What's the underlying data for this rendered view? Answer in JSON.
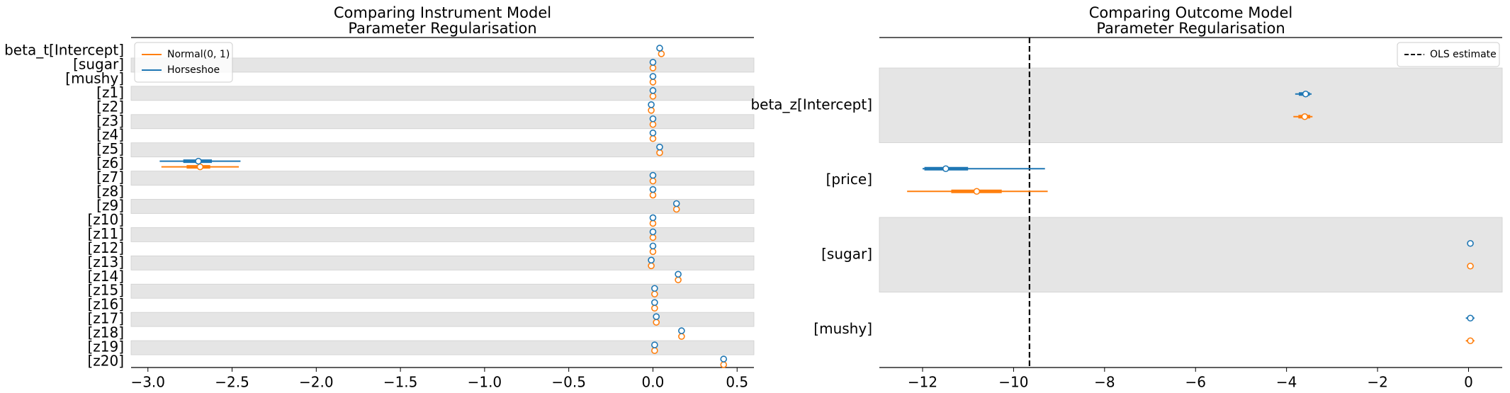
{
  "chart_data": [
    {
      "type": "forest",
      "title": [
        "Comparing Instrument Model",
        "Parameter Regularisation"
      ],
      "categories": [
        "beta_t[Intercept]",
        "[sugar]",
        "[mushy]",
        "[z1]",
        "[z2]",
        "[z3]",
        "[z4]",
        "[z5]",
        "[z6]",
        "[z7]",
        "[z8]",
        "[z9]",
        "[z10]",
        "[z11]",
        "[z12]",
        "[z13]",
        "[z14]",
        "[z15]",
        "[z16]",
        "[z17]",
        "[z18]",
        "[z19]",
        "[z20]"
      ],
      "series": [
        {
          "name": "Normal(0, 1)",
          "color": "#ff7f0e",
          "values": [
            0.05,
            0.0,
            0.0,
            0.0,
            -0.01,
            0.0,
            0.0,
            0.04,
            -2.69,
            0.0,
            0.0,
            0.14,
            0.0,
            0.0,
            0.0,
            -0.01,
            0.15,
            0.01,
            0.01,
            0.02,
            0.17,
            0.01,
            0.42
          ],
          "hdi_low": [
            null,
            null,
            null,
            null,
            null,
            null,
            null,
            null,
            -2.92,
            null,
            null,
            null,
            null,
            null,
            null,
            null,
            null,
            null,
            null,
            null,
            null,
            null,
            null
          ],
          "hdi_high": [
            null,
            null,
            null,
            null,
            null,
            null,
            null,
            null,
            -2.46,
            null,
            null,
            null,
            null,
            null,
            null,
            null,
            null,
            null,
            null,
            null,
            null,
            null,
            null
          ],
          "iqr_low": [
            null,
            null,
            null,
            null,
            null,
            null,
            null,
            null,
            -2.77,
            null,
            null,
            null,
            null,
            null,
            null,
            null,
            null,
            null,
            null,
            null,
            null,
            null,
            null
          ],
          "iqr_high": [
            null,
            null,
            null,
            null,
            null,
            null,
            null,
            null,
            -2.63,
            null,
            null,
            null,
            null,
            null,
            null,
            null,
            null,
            null,
            null,
            null,
            null,
            null,
            null
          ]
        },
        {
          "name": "Horseshoe",
          "color": "#1f77b4",
          "values": [
            0.04,
            0.0,
            0.0,
            0.0,
            -0.01,
            0.0,
            0.0,
            0.04,
            -2.7,
            0.0,
            0.0,
            0.14,
            0.0,
            0.0,
            0.0,
            -0.01,
            0.15,
            0.01,
            0.01,
            0.02,
            0.17,
            0.01,
            0.42
          ],
          "hdi_low": [
            null,
            null,
            null,
            null,
            null,
            null,
            null,
            null,
            -2.93,
            null,
            null,
            null,
            null,
            null,
            null,
            null,
            null,
            null,
            null,
            null,
            null,
            null,
            null
          ],
          "hdi_high": [
            null,
            null,
            null,
            null,
            null,
            null,
            null,
            null,
            -2.45,
            null,
            null,
            null,
            null,
            null,
            null,
            null,
            null,
            null,
            null,
            null,
            null,
            null,
            null
          ],
          "iqr_low": [
            null,
            null,
            null,
            null,
            null,
            null,
            null,
            null,
            -2.79,
            null,
            null,
            null,
            null,
            null,
            null,
            null,
            null,
            null,
            null,
            null,
            null,
            null,
            null
          ],
          "iqr_high": [
            null,
            null,
            null,
            null,
            null,
            null,
            null,
            null,
            -2.62,
            null,
            null,
            null,
            null,
            null,
            null,
            null,
            null,
            null,
            null,
            null,
            null,
            null,
            null
          ]
        }
      ],
      "xlim": [
        -3.1,
        0.6
      ],
      "xticks": [
        {
          "value": -3.0,
          "label": "−3.0"
        },
        {
          "value": -2.5,
          "label": "−2.5"
        },
        {
          "value": -2.0,
          "label": "−2.0"
        },
        {
          "value": -1.5,
          "label": "−1.5"
        },
        {
          "value": -1.0,
          "label": "−1.0"
        },
        {
          "value": -0.5,
          "label": "−0.5"
        },
        {
          "value": 0.0,
          "label": "0.0"
        },
        0.5
      ],
      "legend": "upper left",
      "bands": true
    },
    {
      "type": "forest",
      "title": [
        "Comparing Outcome Model",
        "Parameter Regularisation"
      ],
      "categories": [
        "beta_z[Intercept]",
        "[price]",
        "[sugar]",
        "[mushy]"
      ],
      "series": [
        {
          "name": "Horseshoe",
          "color": "#1f77b4",
          "values": [
            -3.58,
            -11.49,
            0.04,
            0.04
          ],
          "hdi_low": [
            -3.81,
            -12.0,
            null,
            -0.06
          ],
          "hdi_high": [
            -3.45,
            -9.31,
            null,
            0.13
          ],
          "iqr_low": [
            -3.73,
            -11.96,
            null,
            -0.02
          ],
          "iqr_high": [
            -3.49,
            -11.0,
            null,
            0.09
          ]
        },
        {
          "name": "Normal(0, 1)",
          "color": "#ff7f0e",
          "values": [
            -3.6,
            -10.81,
            0.04,
            0.04
          ],
          "hdi_low": [
            -3.85,
            -12.34,
            null,
            -0.06
          ],
          "hdi_high": [
            -3.43,
            -9.25,
            null,
            0.13
          ],
          "iqr_low": [
            -3.74,
            -11.37,
            null,
            -0.02
          ],
          "iqr_high": [
            -3.48,
            -10.26,
            null,
            0.09
          ]
        }
      ],
      "reference_line": {
        "name": "OLS estimate",
        "value": -9.65,
        "color": "#000000"
      },
      "xlim": [
        -12.95,
        0.74
      ],
      "xticks": [
        {
          "value": -12,
          "label": "−12"
        },
        {
          "value": -10,
          "label": "−10"
        },
        {
          "value": -8,
          "label": "−8"
        },
        {
          "value": -6,
          "label": "−6"
        },
        {
          "value": -4,
          "label": "−4"
        },
        {
          "value": -2,
          "label": "−2"
        },
        0
      ],
      "legend": "upper right",
      "bands": true
    }
  ]
}
